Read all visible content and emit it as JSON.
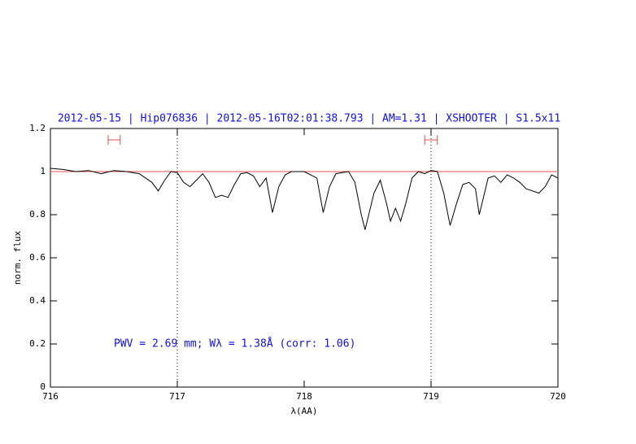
{
  "chart_data": {
    "type": "line",
    "title": "2012-05-15 | Hip076836 | 2012-05-16T02:01:38.793 | AM=1.31 | XSHOOTER | S1.5x11",
    "annotation": "PWV = 2.69 mm; Wλ = 1.38Å (corr: 1.06)",
    "xlabel": "λ(AA)",
    "ylabel": "norm. flux",
    "x": [
      716.0,
      716.1,
      716.2,
      716.3,
      716.4,
      716.5,
      716.6,
      716.7,
      716.8,
      716.85,
      716.9,
      716.95,
      717.0,
      717.05,
      717.1,
      717.15,
      717.2,
      717.25,
      717.3,
      717.35,
      717.4,
      717.45,
      717.5,
      717.55,
      717.6,
      717.65,
      717.7,
      717.75,
      717.8,
      717.85,
      717.9,
      718.0,
      718.1,
      718.15,
      718.2,
      718.25,
      718.3,
      718.35,
      718.4,
      718.45,
      718.48,
      718.55,
      718.6,
      718.65,
      718.68,
      718.72,
      718.76,
      718.8,
      718.85,
      718.9,
      718.95,
      719.0,
      719.05,
      719.1,
      719.15,
      719.2,
      719.25,
      719.3,
      719.35,
      719.38,
      719.45,
      719.5,
      719.55,
      719.6,
      719.65,
      719.7,
      719.75,
      719.8,
      719.85,
      719.9,
      719.95,
      720.0
    ],
    "values": [
      1.015,
      1.01,
      1.0,
      1.005,
      0.99,
      1.005,
      1.0,
      0.99,
      0.95,
      0.91,
      0.96,
      1.0,
      0.995,
      0.95,
      0.93,
      0.96,
      0.99,
      0.95,
      0.88,
      0.89,
      0.88,
      0.94,
      0.99,
      0.995,
      0.98,
      0.93,
      0.97,
      0.81,
      0.93,
      0.985,
      1.0,
      1.0,
      0.97,
      0.81,
      0.93,
      0.99,
      0.995,
      1.0,
      0.95,
      0.8,
      0.73,
      0.9,
      0.96,
      0.85,
      0.77,
      0.83,
      0.77,
      0.85,
      0.97,
      1.0,
      0.99,
      1.005,
      1.0,
      0.9,
      0.75,
      0.85,
      0.94,
      0.95,
      0.92,
      0.8,
      0.97,
      0.98,
      0.95,
      0.985,
      0.97,
      0.95,
      0.92,
      0.91,
      0.9,
      0.93,
      0.985,
      0.97
    ],
    "color": "#000000",
    "hline": 1,
    "hline_color": "#e05050",
    "vlines": [
      717,
      719
    ],
    "windows": [
      {
        "x": [
          716.455,
          716.55
        ],
        "y": 1.147
      },
      {
        "x": [
          718.95,
          719.05
        ],
        "y": 1.147
      }
    ],
    "xlim": [
      716,
      720
    ],
    "ylim": [
      0,
      1.2
    ],
    "xticks": [
      716,
      717,
      718,
      719,
      720
    ],
    "yticks": [
      0,
      0.2,
      0.4,
      0.6,
      0.8,
      1,
      1.2
    ]
  }
}
